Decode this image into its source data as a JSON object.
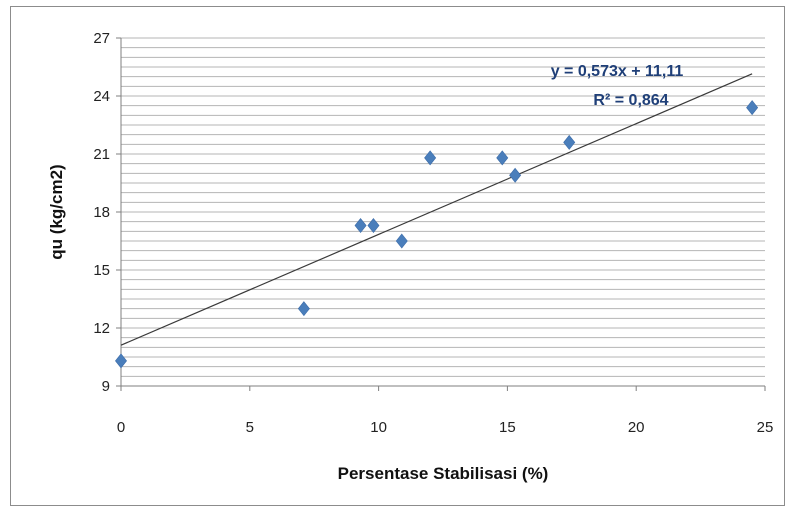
{
  "chart_data": {
    "type": "scatter",
    "title": "",
    "xlabel": "Persentase Stabilisasi (%)",
    "ylabel": "qu (kg/cm2)",
    "xlim": [
      0,
      25
    ],
    "ylim": [
      9,
      27
    ],
    "x_ticks": [
      0,
      5,
      10,
      15,
      20,
      25
    ],
    "y_ticks": [
      9,
      12,
      15,
      18,
      21,
      24,
      27
    ],
    "grid": "horizontal-minor",
    "minor_y_step": 0.5,
    "marker": "diamond",
    "marker_color": "#4a7ebb",
    "series": [
      {
        "points": [
          {
            "x": 0,
            "y": 10.3
          },
          {
            "x": 7.1,
            "y": 13.0
          },
          {
            "x": 9.3,
            "y": 17.3
          },
          {
            "x": 9.8,
            "y": 17.3
          },
          {
            "x": 10.9,
            "y": 16.5
          },
          {
            "x": 12.0,
            "y": 20.8
          },
          {
            "x": 14.8,
            "y": 20.8
          },
          {
            "x": 15.3,
            "y": 19.9
          },
          {
            "x": 17.4,
            "y": 21.6
          },
          {
            "x": 24.5,
            "y": 23.4
          }
        ]
      }
    ],
    "trendline": {
      "slope": 0.573,
      "intercept": 11.11,
      "x_range": [
        0,
        24.5
      ],
      "equation_label": "y = 0,573x + 11,11",
      "r2_label": "R² = 0,864"
    }
  }
}
